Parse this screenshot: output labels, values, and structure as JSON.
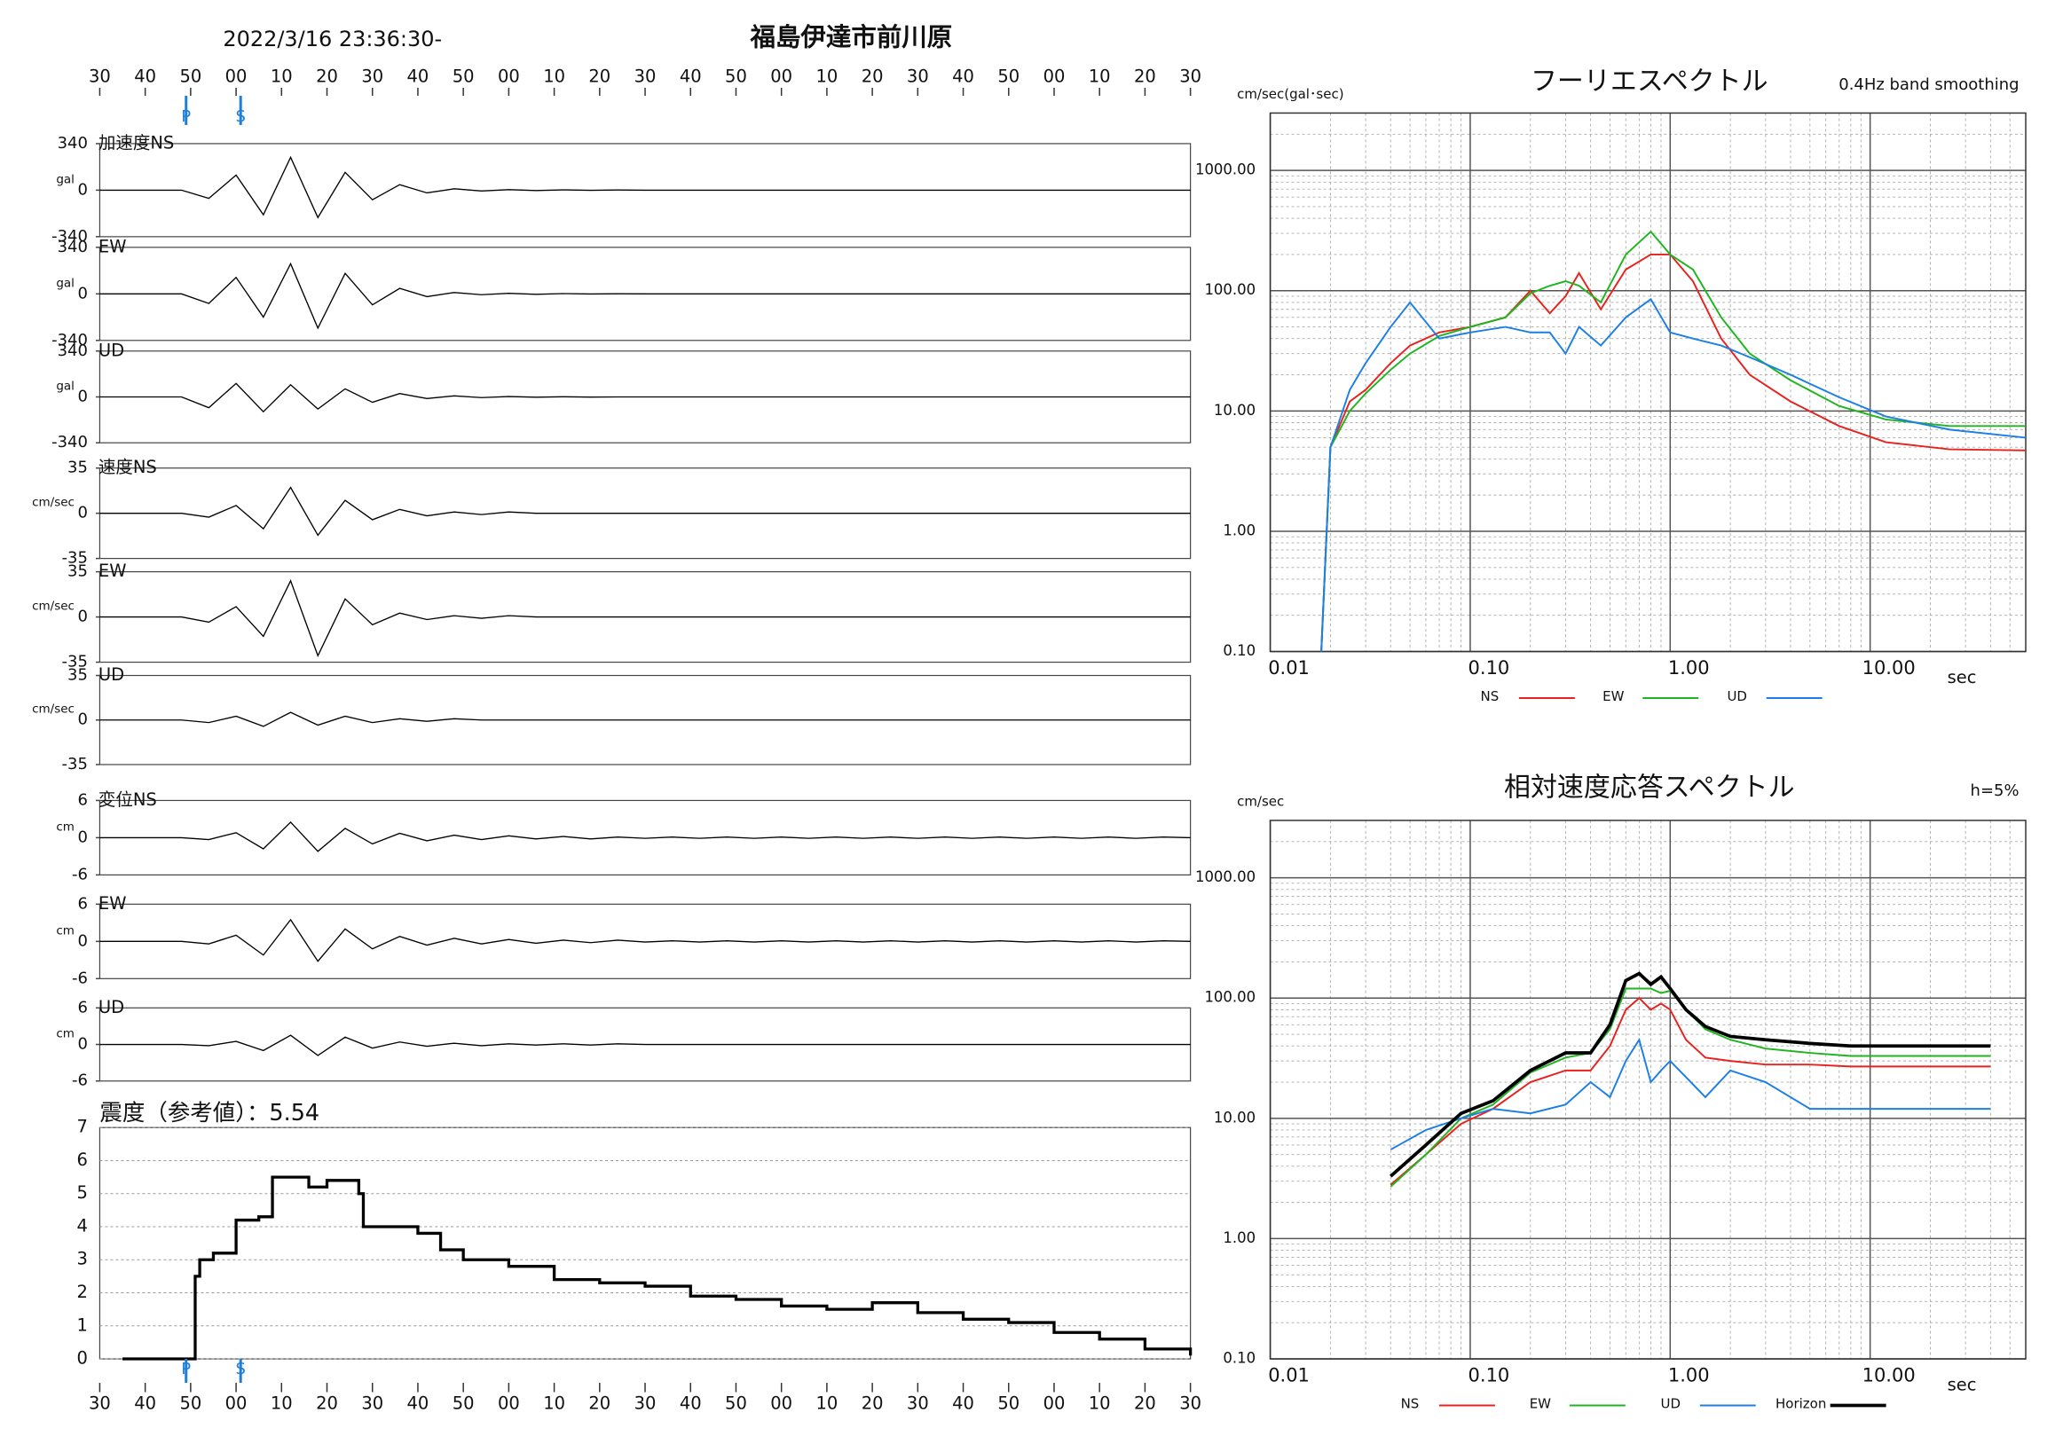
{
  "chart_data": [
    {
      "type": "waveform",
      "subtitle": "2022/3/16 23:36:30-",
      "title": "福島伊達市前川原",
      "xlim": [
        0,
        240
      ],
      "xticks": [
        {
          "value": 0,
          "label": "30"
        },
        {
          "value": 10,
          "label": "40"
        },
        {
          "value": 20,
          "label": "50"
        },
        {
          "value": 30,
          "label": "00"
        },
        {
          "value": 40,
          "label": "10"
        },
        {
          "value": 50,
          "label": "20"
        },
        {
          "value": 60,
          "label": "30"
        },
        {
          "value": 70,
          "label": "40"
        },
        {
          "value": 80,
          "label": "50"
        },
        {
          "value": 90,
          "label": "00"
        },
        {
          "value": 100,
          "label": "10"
        },
        {
          "value": 110,
          "label": "20"
        },
        {
          "value": 120,
          "label": "30"
        },
        {
          "value": 130,
          "label": "40"
        },
        {
          "value": 140,
          "label": "50"
        },
        {
          "value": 150,
          "label": "00"
        },
        {
          "value": 160,
          "label": "10"
        },
        {
          "value": 170,
          "label": "20"
        },
        {
          "value": 180,
          "label": "30"
        },
        {
          "value": 190,
          "label": "40"
        },
        {
          "value": 200,
          "label": "50"
        },
        {
          "value": 210,
          "label": "00"
        },
        {
          "value": 220,
          "label": "10"
        },
        {
          "value": 230,
          "label": "20"
        },
        {
          "value": 240,
          "label": "30"
        }
      ],
      "markers": [
        {
          "label": "P",
          "value": 19,
          "color": "#1f7fd6"
        },
        {
          "label": "S",
          "value": 31,
          "color": "#1f7fd6"
        }
      ],
      "x": [
        0,
        6,
        12,
        18,
        24,
        30,
        36,
        42,
        48,
        54,
        60,
        66,
        72,
        78,
        84,
        90,
        96,
        102,
        108,
        114,
        120,
        126,
        132,
        138,
        144,
        150,
        156,
        162,
        168,
        174,
        180,
        186,
        192,
        198,
        204,
        210,
        216,
        222,
        228,
        234,
        240
      ],
      "panels": [
        {
          "name": "加速度NS",
          "unit": "gal",
          "ylim": [
            -340,
            340
          ],
          "yticks": [
            340,
            0,
            -340
          ],
          "values": [
            0,
            0,
            0,
            0,
            -60,
            110,
            -180,
            240,
            -200,
            130,
            -70,
            40,
            -20,
            10,
            -6,
            4,
            -3,
            2,
            -1,
            1,
            0,
            0,
            0,
            0,
            0,
            0,
            0,
            0,
            0,
            0,
            0,
            0,
            0,
            0,
            0,
            0,
            0,
            0,
            0,
            0,
            0
          ]
        },
        {
          "name": "EW",
          "unit": "gal",
          "ylim": [
            -340,
            340
          ],
          "yticks": [
            340,
            0,
            -340
          ],
          "values": [
            0,
            0,
            0,
            0,
            -70,
            120,
            -170,
            220,
            -250,
            150,
            -80,
            40,
            -20,
            10,
            -6,
            4,
            -3,
            2,
            -1,
            1,
            0,
            0,
            0,
            0,
            0,
            0,
            0,
            0,
            0,
            0,
            0,
            0,
            0,
            0,
            0,
            0,
            0,
            0,
            0,
            0,
            0
          ]
        },
        {
          "name": "UD",
          "unit": "gal",
          "ylim": [
            -340,
            340
          ],
          "yticks": [
            340,
            0,
            -340
          ],
          "values": [
            0,
            0,
            0,
            0,
            -80,
            100,
            -110,
            90,
            -90,
            60,
            -40,
            25,
            -12,
            8,
            -5,
            3,
            -2,
            1,
            -1,
            0,
            0,
            0,
            0,
            0,
            0,
            0,
            0,
            0,
            0,
            0,
            0,
            0,
            0,
            0,
            0,
            0,
            0,
            0,
            0,
            0,
            0
          ]
        },
        {
          "name": "速度NS",
          "unit": "cm/sec",
          "ylim": [
            -35,
            35
          ],
          "yticks": [
            35,
            0,
            -35
          ],
          "values": [
            0,
            0,
            0,
            0,
            -3,
            6,
            -12,
            20,
            -17,
            10,
            -5,
            3,
            -2,
            1,
            -1,
            1,
            0,
            0,
            0,
            0,
            0,
            0,
            0,
            0,
            0,
            0,
            0,
            0,
            0,
            0,
            0,
            0,
            0,
            0,
            0,
            0,
            0,
            0,
            0,
            0,
            0
          ]
        },
        {
          "name": "EW",
          "unit": "cm/sec",
          "ylim": [
            -35,
            35
          ],
          "yticks": [
            35,
            0,
            -35
          ],
          "values": [
            0,
            0,
            0,
            0,
            -4,
            8,
            -15,
            28,
            -30,
            14,
            -6,
            3,
            -2,
            1,
            -1,
            1,
            0,
            0,
            0,
            0,
            0,
            0,
            0,
            0,
            0,
            0,
            0,
            0,
            0,
            0,
            0,
            0,
            0,
            0,
            0,
            0,
            0,
            0,
            0,
            0,
            0
          ]
        },
        {
          "name": "UD",
          "unit": "cm/sec",
          "ylim": [
            -35,
            35
          ],
          "yticks": [
            35,
            0,
            -35
          ],
          "values": [
            0,
            0,
            0,
            0,
            -2,
            3,
            -5,
            6,
            -4,
            3,
            -2,
            1,
            -1,
            1,
            0,
            0,
            0,
            0,
            0,
            0,
            0,
            0,
            0,
            0,
            0,
            0,
            0,
            0,
            0,
            0,
            0,
            0,
            0,
            0,
            0,
            0,
            0,
            0,
            0,
            0,
            0
          ]
        },
        {
          "name": "変位NS",
          "unit": "cm",
          "ylim": [
            -6,
            6
          ],
          "yticks": [
            6,
            0,
            -6
          ],
          "values": [
            0,
            0,
            0,
            0,
            -0.3,
            0.8,
            -1.8,
            2.5,
            -2.2,
            1.5,
            -1,
            0.7,
            -0.5,
            0.4,
            -0.3,
            0.3,
            -0.2,
            0.2,
            -0.2,
            0.1,
            -0.1,
            0.1,
            -0.1,
            0.1,
            -0.1,
            0.1,
            -0.1,
            0.1,
            -0.1,
            0.1,
            -0.1,
            0.1,
            -0.1,
            0.1,
            -0.1,
            0.1,
            -0.1,
            0.1,
            -0.1,
            0.1,
            0
          ]
        },
        {
          "name": "EW",
          "unit": "cm",
          "ylim": [
            -6,
            6
          ],
          "yticks": [
            6,
            0,
            -6
          ],
          "values": [
            0,
            0,
            0,
            0,
            -0.4,
            1,
            -2.2,
            3.5,
            -3.2,
            2,
            -1.2,
            0.8,
            -0.6,
            0.5,
            -0.4,
            0.3,
            -0.3,
            0.2,
            -0.2,
            0.2,
            -0.1,
            0.1,
            -0.1,
            0.1,
            -0.1,
            0.1,
            -0.1,
            0.1,
            -0.1,
            0.1,
            -0.1,
            0.1,
            -0.1,
            0.1,
            -0.1,
            0.1,
            -0.1,
            0.1,
            -0.1,
            0.1,
            0
          ]
        },
        {
          "name": "UD",
          "unit": "cm",
          "ylim": [
            -6,
            6
          ],
          "yticks": [
            6,
            0,
            -6
          ],
          "values": [
            0,
            0,
            0,
            0,
            -0.2,
            0.5,
            -1,
            1.5,
            -1.8,
            1.2,
            -0.6,
            0.4,
            -0.3,
            0.2,
            -0.2,
            0.1,
            -0.1,
            0.1,
            -0.1,
            0.1,
            0,
            0,
            0,
            0,
            0,
            0,
            0,
            0,
            0,
            0,
            0,
            0,
            0,
            0,
            0,
            0,
            0,
            0,
            0,
            0,
            0
          ]
        }
      ]
    },
    {
      "type": "intensity",
      "title": "震度（参考値）：5.54",
      "color": "#000000",
      "ylim": [
        0,
        7
      ],
      "yticks": [
        0,
        1,
        2,
        3,
        4,
        5,
        6,
        7
      ],
      "grid": true,
      "x": [
        5,
        20,
        21,
        22,
        25,
        30,
        35,
        38,
        42,
        46,
        50,
        55,
        57,
        58,
        70,
        75,
        80,
        90,
        100,
        110,
        120,
        130,
        140,
        150,
        160,
        170,
        180,
        190,
        200,
        210,
        220,
        230,
        240
      ],
      "values": [
        0,
        0,
        2.5,
        3,
        3.2,
        4.2,
        4.3,
        5.5,
        5.5,
        5.2,
        5.4,
        5.4,
        5,
        4,
        3.8,
        3.3,
        3,
        2.8,
        2.4,
        2.3,
        2.2,
        1.9,
        1.8,
        1.6,
        1.5,
        1.7,
        1.4,
        1.2,
        1.1,
        0.8,
        0.6,
        0.3,
        0.1
      ]
    },
    {
      "type": "line",
      "title": "フーリエスペクトル",
      "subtitle": "0.4Hz band smoothing",
      "y_label": "cm/sec(gal･sec)",
      "x_label": "sec",
      "xscale": "log",
      "yscale": "log",
      "grid": true,
      "legend": "bottom",
      "xlim": [
        0.01,
        60
      ],
      "xticks": [
        0.01,
        {
          "value": 0.1,
          "label": "0.10"
        },
        {
          "value": 1,
          "label": "1.00"
        },
        {
          "value": 10,
          "label": "10.00"
        }
      ],
      "ylim": [
        0.1,
        3000
      ],
      "yticks": [
        {
          "value": 0.1,
          "label": "0.10"
        },
        {
          "value": 1,
          "label": "1.00"
        },
        {
          "value": 10,
          "label": "10.00"
        },
        {
          "value": 100,
          "label": "100.00"
        },
        {
          "value": 1000,
          "label": "1000.00"
        }
      ],
      "x": [
        0.018,
        0.02,
        0.025,
        0.03,
        0.04,
        0.05,
        0.07,
        0.1,
        0.15,
        0.2,
        0.25,
        0.3,
        0.35,
        0.45,
        0.6,
        0.8,
        1,
        1.3,
        1.8,
        2.5,
        4,
        7,
        12,
        25,
        60
      ],
      "series": [
        {
          "name": "NS",
          "color": "#e8221e",
          "values": [
            0.1,
            5,
            12,
            15,
            25,
            35,
            45,
            50,
            60,
            100,
            65,
            90,
            140,
            70,
            150,
            200,
            200,
            120,
            40,
            20,
            12,
            7.5,
            5.5,
            4.8,
            4.7
          ]
        },
        {
          "name": "EW",
          "color": "#1fb51f",
          "values": [
            0.1,
            5,
            10,
            14,
            22,
            30,
            42,
            50,
            60,
            95,
            110,
            120,
            110,
            80,
            200,
            310,
            200,
            150,
            60,
            30,
            18,
            11,
            8.5,
            7.5,
            7.5
          ]
        },
        {
          "name": "UD",
          "color": "#1c7fe6",
          "values": [
            0.1,
            5,
            15,
            25,
            50,
            80,
            40,
            45,
            50,
            45,
            45,
            30,
            50,
            35,
            60,
            85,
            45,
            40,
            35,
            28,
            20,
            13,
            9,
            7,
            6
          ]
        }
      ]
    },
    {
      "type": "line",
      "title": "相対速度応答スペクトル",
      "subtitle": "h=5%",
      "y_label": "cm/sec",
      "x_label": "sec",
      "xscale": "log",
      "yscale": "log",
      "grid": true,
      "legend": "bottom",
      "xlim": [
        0.01,
        60
      ],
      "xticks": [
        0.01,
        {
          "value": 0.1,
          "label": "0.10"
        },
        {
          "value": 1,
          "label": "1.00"
        },
        {
          "value": 10,
          "label": "10.00"
        }
      ],
      "ylim": [
        0.1,
        3000
      ],
      "yticks": [
        {
          "value": 0.1,
          "label": "0.10"
        },
        {
          "value": 1,
          "label": "1.00"
        },
        {
          "value": 10,
          "label": "10.00"
        },
        {
          "value": 100,
          "label": "100.00"
        },
        {
          "value": 1000,
          "label": "1000.00"
        }
      ],
      "x": [
        0.04,
        0.06,
        0.09,
        0.13,
        0.2,
        0.3,
        0.4,
        0.5,
        0.6,
        0.7,
        0.8,
        0.9,
        1,
        1.2,
        1.5,
        2,
        3,
        5,
        8,
        12,
        40
      ],
      "series": [
        {
          "name": "NS",
          "color": "#e8221e",
          "values": [
            2.8,
            5,
            9,
            12,
            20,
            25,
            25,
            40,
            80,
            100,
            80,
            90,
            80,
            45,
            32,
            30,
            28,
            28,
            27,
            27,
            27
          ]
        },
        {
          "name": "EW",
          "color": "#1fb51f",
          "values": [
            2.7,
            5,
            10,
            13,
            24,
            32,
            35,
            55,
            120,
            120,
            120,
            110,
            115,
            80,
            55,
            45,
            38,
            35,
            33,
            33,
            33
          ]
        },
        {
          "name": "UD",
          "color": "#1c7fe6",
          "values": [
            5.5,
            8,
            10,
            12,
            11,
            13,
            20,
            15,
            30,
            45,
            20,
            25,
            30,
            22,
            15,
            25,
            20,
            12,
            12,
            12,
            12
          ]
        },
        {
          "name": "Horizon",
          "color": "#000000",
          "width": 2.5,
          "values": [
            3.3,
            6,
            11,
            14,
            25,
            35,
            35,
            60,
            140,
            160,
            130,
            150,
            120,
            80,
            58,
            48,
            45,
            42,
            40,
            40,
            40
          ]
        }
      ]
    }
  ]
}
